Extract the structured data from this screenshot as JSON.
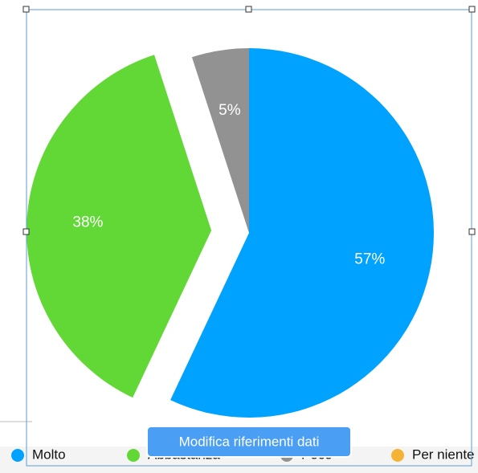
{
  "chart_data": {
    "type": "pie",
    "categories": [
      "Molto",
      "Abbastanza",
      "Poco",
      "Per niente"
    ],
    "values": [
      57,
      38,
      5,
      0
    ],
    "value_labels": [
      "57%",
      "38%",
      "5%",
      null
    ],
    "colors": [
      "#00a2ff",
      "#61d836",
      "#929292",
      "#f5b335"
    ],
    "explode": [
      false,
      true,
      false,
      false
    ],
    "legend": "bottom"
  },
  "button": {
    "label": "Modifica riferimenti dati"
  }
}
